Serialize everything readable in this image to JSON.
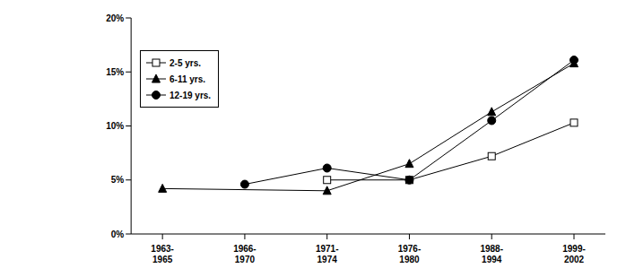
{
  "chart_data": {
    "type": "line",
    "categories": [
      "1963-1965",
      "1966-1970",
      "1971-1974",
      "1976-1980",
      "1988-1994",
      "1999-2002"
    ],
    "series": [
      {
        "name": "2-5 yrs.",
        "color": "#000000",
        "marker": "open_square",
        "values": [
          null,
          null,
          5.0,
          5.0,
          7.2,
          10.3
        ]
      },
      {
        "name": "6-11 yrs.",
        "color": "#000000",
        "marker": "triangle",
        "values": [
          4.2,
          null,
          4.0,
          6.5,
          11.3,
          15.8
        ]
      },
      {
        "name": "12-19 yrs.",
        "color": "#000000",
        "marker": "circle",
        "values": [
          null,
          4.6,
          6.1,
          5.0,
          10.5,
          16.1
        ]
      }
    ],
    "ylim": [
      0,
      20
    ],
    "yticks": [
      {
        "value": 0,
        "label": "0%"
      },
      {
        "value": 5,
        "label": "5%"
      },
      {
        "value": 10,
        "label": "10%"
      },
      {
        "value": 15,
        "label": "15%"
      },
      {
        "value": 20,
        "label": "20%"
      }
    ],
    "grid": false,
    "legend": "upper left"
  }
}
